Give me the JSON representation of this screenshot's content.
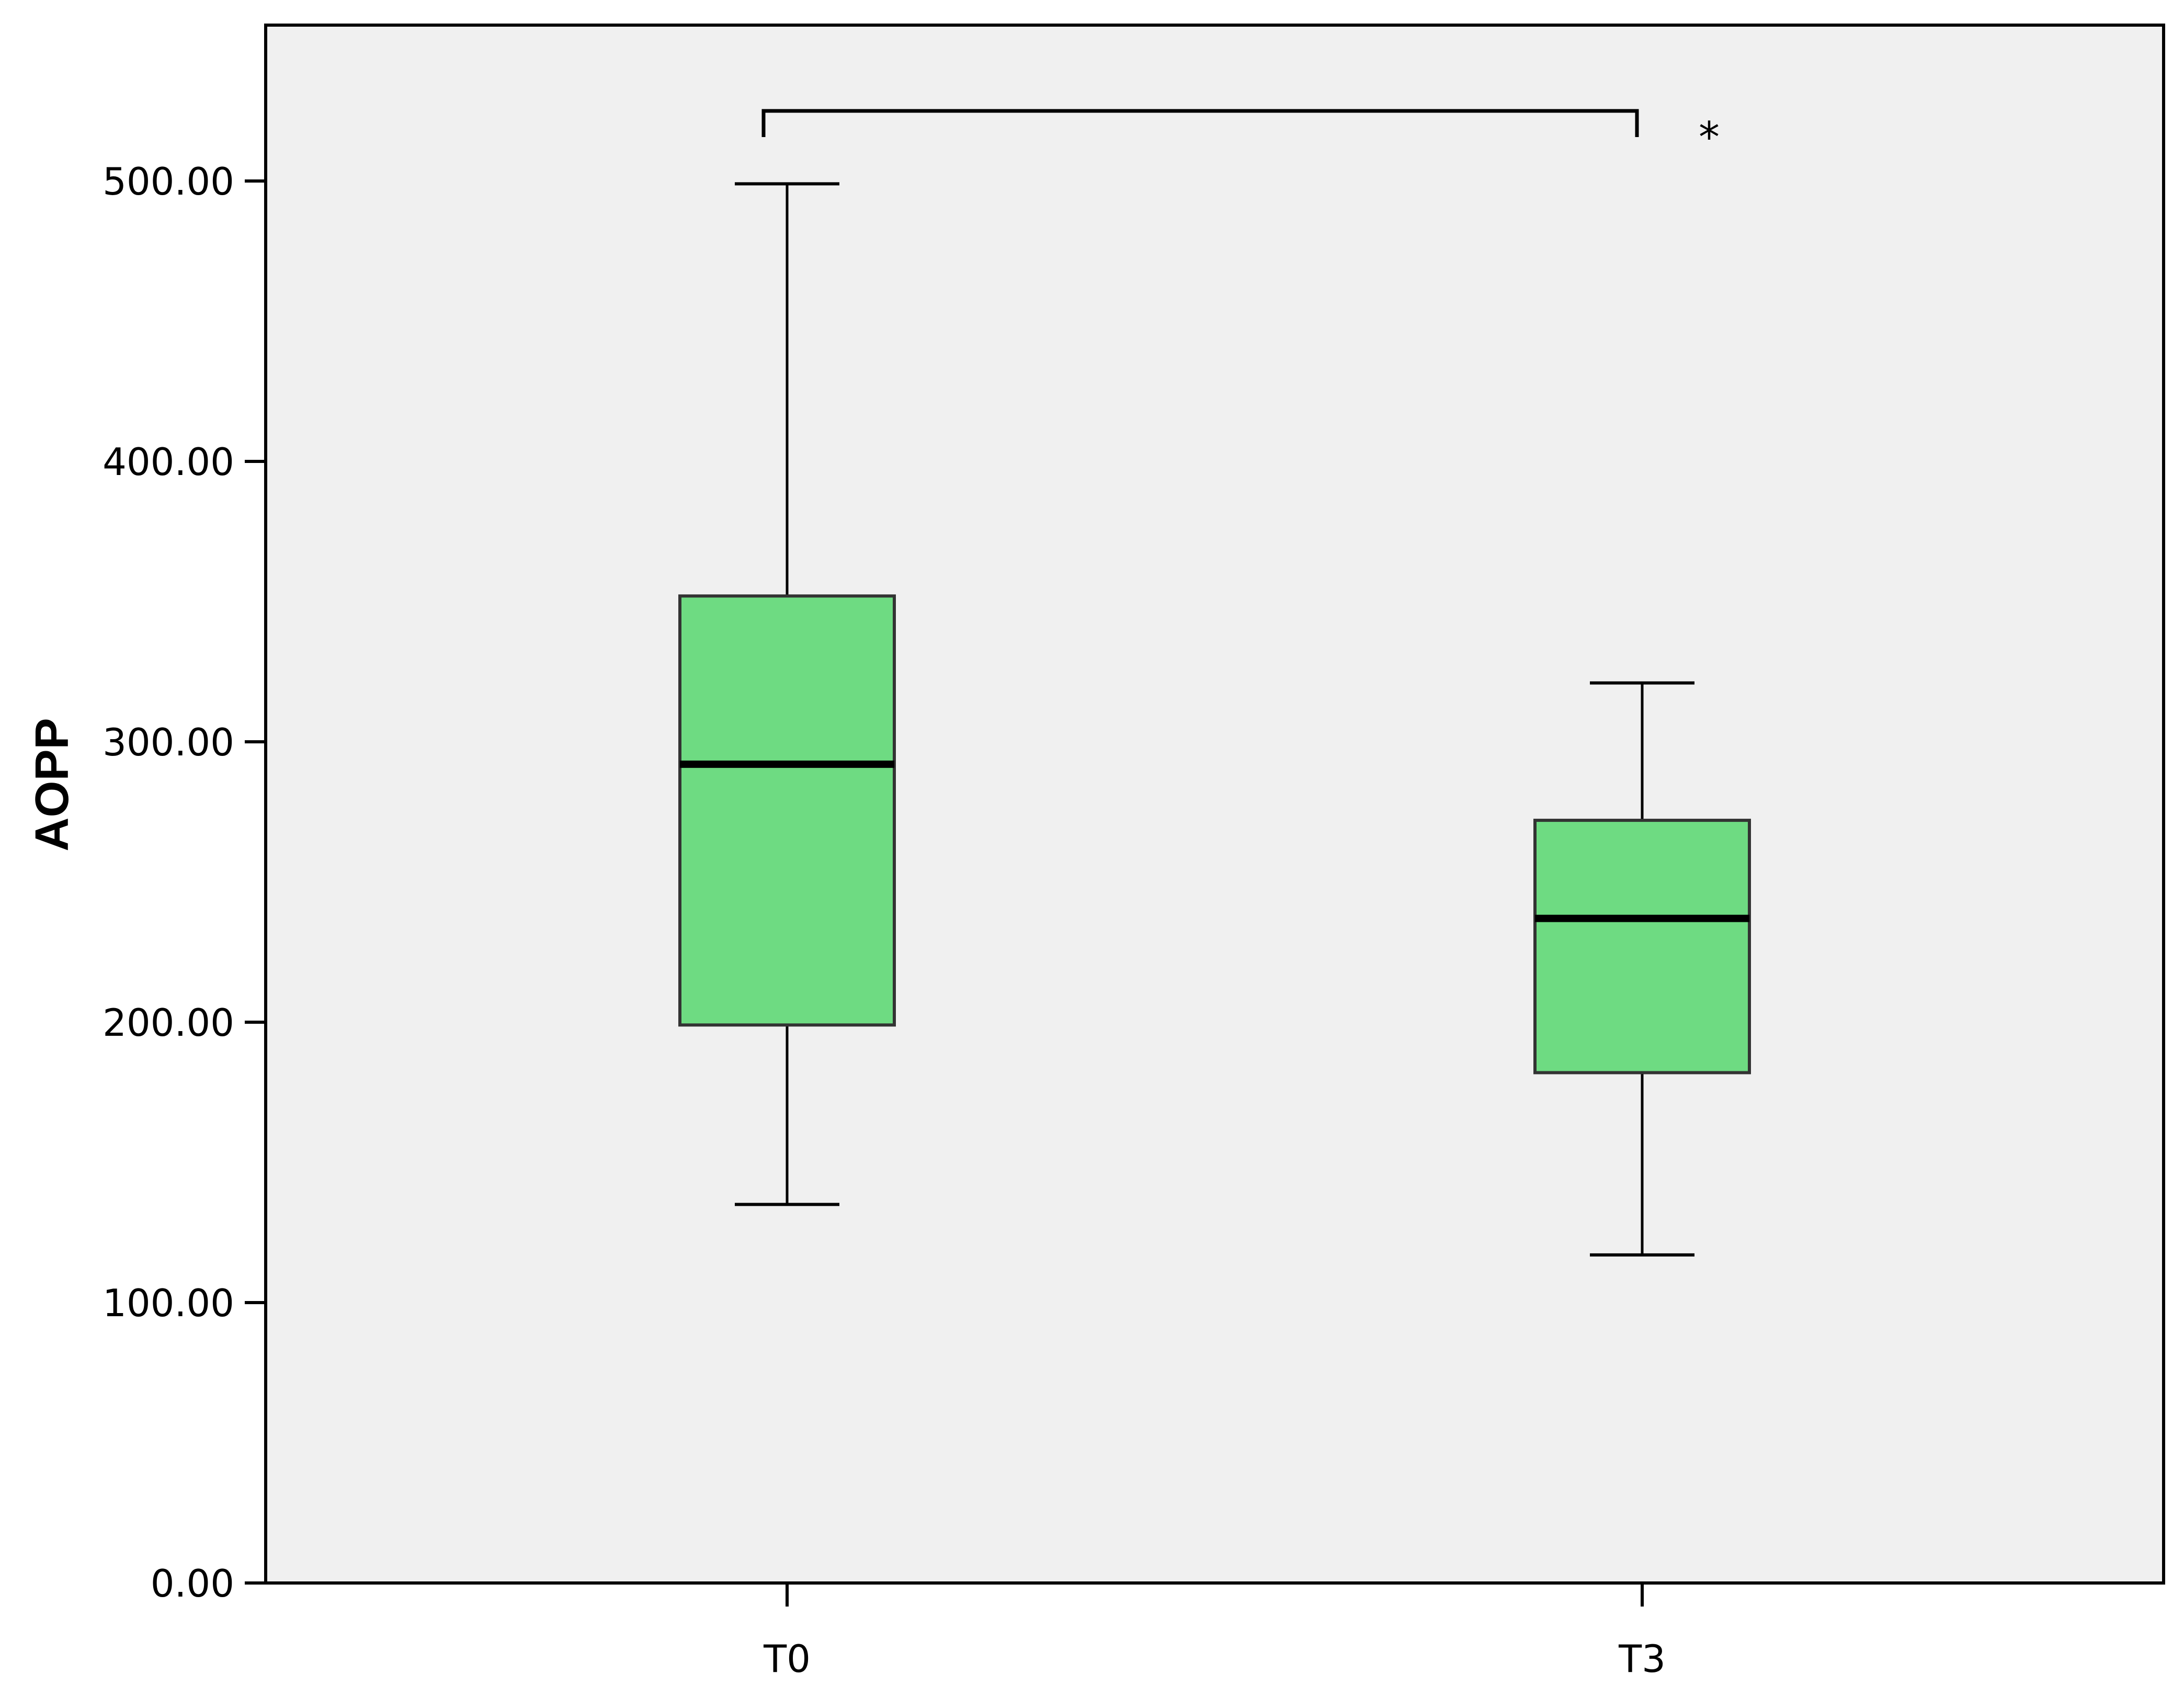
{
  "chart_data": {
    "type": "box",
    "title": "",
    "xlabel": "",
    "ylabel": "AOPP",
    "ylim": [
      0,
      500
    ],
    "yticks": [
      "0.00",
      "100.00",
      "200.00",
      "300.00",
      "400.00",
      "500.00"
    ],
    "grid": false,
    "categories": [
      "T0",
      "T3"
    ],
    "boxes": [
      {
        "category": "T0",
        "whisker_low": 135,
        "q1": 199,
        "median": 292,
        "q3": 352,
        "whisker_high": 499
      },
      {
        "category": "T3",
        "whisker_low": 117,
        "q1": 182,
        "median": 237,
        "q3": 272,
        "whisker_high": 321
      }
    ],
    "significance": {
      "from": "T0",
      "to": "T3",
      "label": "*"
    },
    "colors": {
      "plot_background": "#f0f0f0",
      "box_fill": "#6edb82",
      "line": "#000000"
    }
  }
}
